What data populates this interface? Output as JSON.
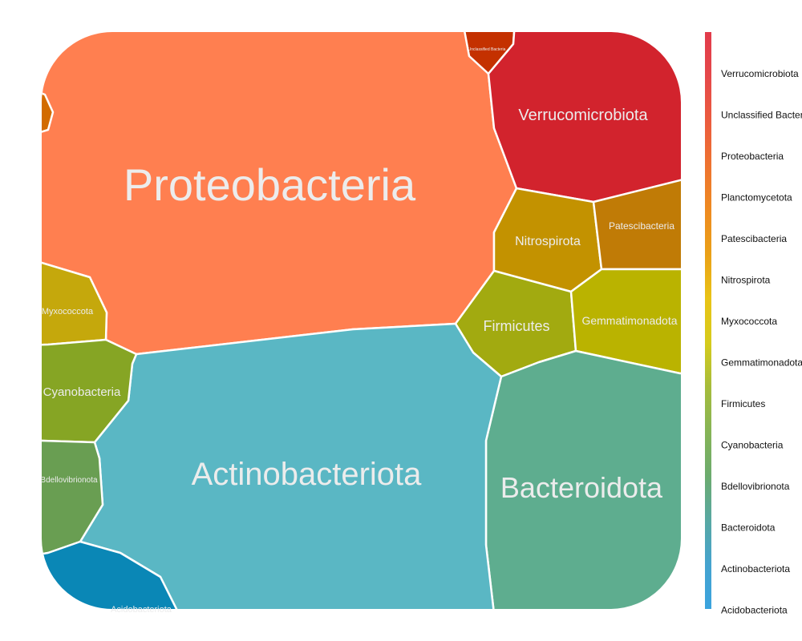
{
  "chart_data": {
    "type": "voronoi-treemap",
    "title": "",
    "cells": [
      {
        "name": "Proteobacteria",
        "color": "#FF7F50"
      },
      {
        "name": "Actinobacteriota",
        "color": "#5AB7C4"
      },
      {
        "name": "Bacteroidota",
        "color": "#5EAD8F"
      },
      {
        "name": "Verrucomicrobiota",
        "color": "#D2232D"
      },
      {
        "name": "Nitrospirota",
        "color": "#C39200"
      },
      {
        "name": "Patescibacteria",
        "color": "#C07B06"
      },
      {
        "name": "Firmicutes",
        "color": "#A2AA10"
      },
      {
        "name": "Gemmatimonadota",
        "color": "#BAB300"
      },
      {
        "name": "Myxococcota",
        "color": "#C5A80C"
      },
      {
        "name": "Cyanobacteria",
        "color": "#86A524"
      },
      {
        "name": "Bdellovibrionota",
        "color": "#699E52"
      },
      {
        "name": "Acidobacteriota",
        "color": "#0A87B6"
      },
      {
        "name": "Unclassified Bacteria",
        "color": "#C43100"
      },
      {
        "name": "Planctomycetota",
        "color": "#D26B00"
      }
    ],
    "legend": {
      "position": "right",
      "items": [
        "Verrucomicrobiota",
        "Unclassified Bacteria",
        "Proteobacteria",
        "Planctomycetota",
        "Patescibacteria",
        "Nitrospirota",
        "Myxococcota",
        "Gemmatimonadota",
        "Firmicutes",
        "Cyanobacteria",
        "Bdellovibrionota",
        "Bacteroidota",
        "Actinobacteriota",
        "Acidobacteriota"
      ],
      "gradient": [
        "#E23B4B",
        "#E5484A",
        "#EB5B3E",
        "#EE7330",
        "#EE8A21",
        "#EAA017",
        "#E9C316",
        "#D6CB1C",
        "#A6BC3B",
        "#86B456",
        "#6CAB6E",
        "#58A8A2",
        "#45A3CF",
        "#3AA3DE"
      ]
    }
  }
}
